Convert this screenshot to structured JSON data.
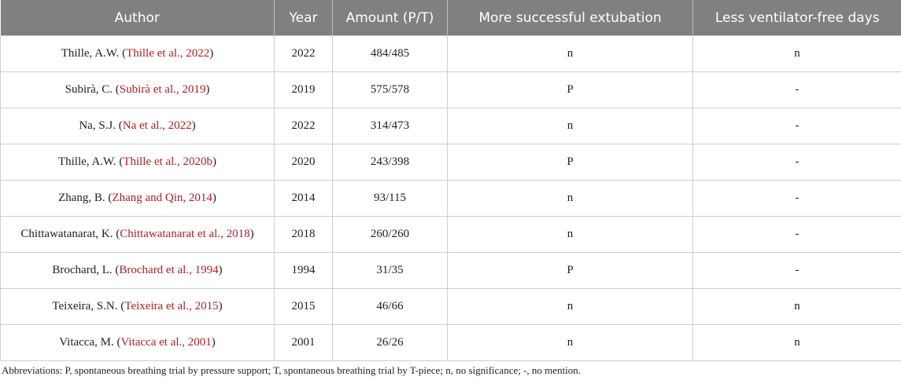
{
  "headers": [
    "Author",
    "Year",
    "Amount (P/T)",
    "More successful extubation",
    "Less ventilator-free days"
  ],
  "rows": [
    {
      "author": "Thille, A.W.",
      "ref": "Thille et al., 2022",
      "year": "2022",
      "amount": "484/485",
      "extubation": "n",
      "vfd": "n"
    },
    {
      "author": "Subirà, C.",
      "ref": "Subirà et al., 2019",
      "year": "2019",
      "amount": "575/578",
      "extubation": "P",
      "vfd": "-"
    },
    {
      "author": "Na, S.J.",
      "ref": "Na et al., 2022",
      "year": "2022",
      "amount": "314/473",
      "extubation": "n",
      "vfd": "-"
    },
    {
      "author": "Thille, A.W.",
      "ref": "Thille et al., 2020b",
      "year": "2020",
      "amount": "243/398",
      "extubation": "P",
      "vfd": "-"
    },
    {
      "author": "Zhang, B.",
      "ref": "Zhang and Qin, 2014",
      "year": "2014",
      "amount": "93/115",
      "extubation": "n",
      "vfd": "-"
    },
    {
      "author": "Chittawatanarat, K.",
      "ref": "Chittawatanarat et al., 2018",
      "year": "2018",
      "amount": "260/260",
      "extubation": "n",
      "vfd": "-"
    },
    {
      "author": "Brochard, L.",
      "ref": "Brochard et al., 1994",
      "year": "1994",
      "amount": "31/35",
      "extubation": "P",
      "vfd": "-"
    },
    {
      "author": "Teixeira, S.N.",
      "ref": "Teixeira et al., 2015",
      "year": "2015",
      "amount": "46/66",
      "extubation": "n",
      "vfd": "n"
    },
    {
      "author": "Vitacca, M.",
      "ref": "Vitacca et al., 2001",
      "year": "2001",
      "amount": "26/26",
      "extubation": "n",
      "vfd": "n"
    }
  ],
  "footnote": "Abbreviations: P, spontaneous breathing trial by pressure support; T, spontaneous breathing trial by T-piece; n, no significance; -, no mention.",
  "colors": {
    "header_bg": "#808080",
    "reference_link": "#b01e23"
  }
}
